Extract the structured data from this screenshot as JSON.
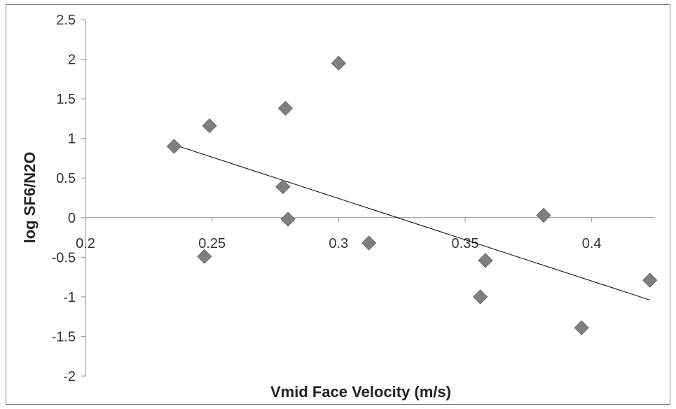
{
  "chart_data": {
    "type": "scatter",
    "title": "",
    "xlabel": "Vmid Face Velocity (m/s)",
    "ylabel": "log SF6/N2O",
    "xlim": [
      0.2,
      0.425
    ],
    "ylim": [
      -2,
      2.5
    ],
    "x_ticks": [
      0.2,
      0.25,
      0.3,
      0.35,
      0.4
    ],
    "x_tick_labels": [
      "0.2",
      "0.25",
      "0.3",
      "0.35",
      "0.4"
    ],
    "y_ticks": [
      -2,
      -1.5,
      -1,
      -0.5,
      0,
      0.5,
      1,
      1.5,
      2,
      2.5
    ],
    "y_tick_labels": [
      "-2",
      "-1.5",
      "-1",
      "-0.5",
      "0",
      "0.5",
      "1",
      "1.5",
      "2",
      "2.5"
    ],
    "grid": false,
    "legend": "none",
    "marker": "diamond",
    "marker_color": "#7f7f7f",
    "trendline_color": "#000000",
    "series": [
      {
        "points": [
          {
            "x": 0.235,
            "y": 0.9
          },
          {
            "x": 0.247,
            "y": -0.49
          },
          {
            "x": 0.249,
            "y": 1.16
          },
          {
            "x": 0.278,
            "y": 0.39
          },
          {
            "x": 0.279,
            "y": 1.38
          },
          {
            "x": 0.28,
            "y": -0.02
          },
          {
            "x": 0.3,
            "y": 1.95
          },
          {
            "x": 0.312,
            "y": -0.32
          },
          {
            "x": 0.356,
            "y": -1.0
          },
          {
            "x": 0.358,
            "y": -0.54
          },
          {
            "x": 0.381,
            "y": 0.03
          },
          {
            "x": 0.396,
            "y": -1.39
          },
          {
            "x": 0.423,
            "y": -0.79
          }
        ]
      }
    ],
    "trendline": {
      "x": [
        0.235,
        0.423
      ],
      "y": [
        0.92,
        -1.04
      ]
    }
  }
}
